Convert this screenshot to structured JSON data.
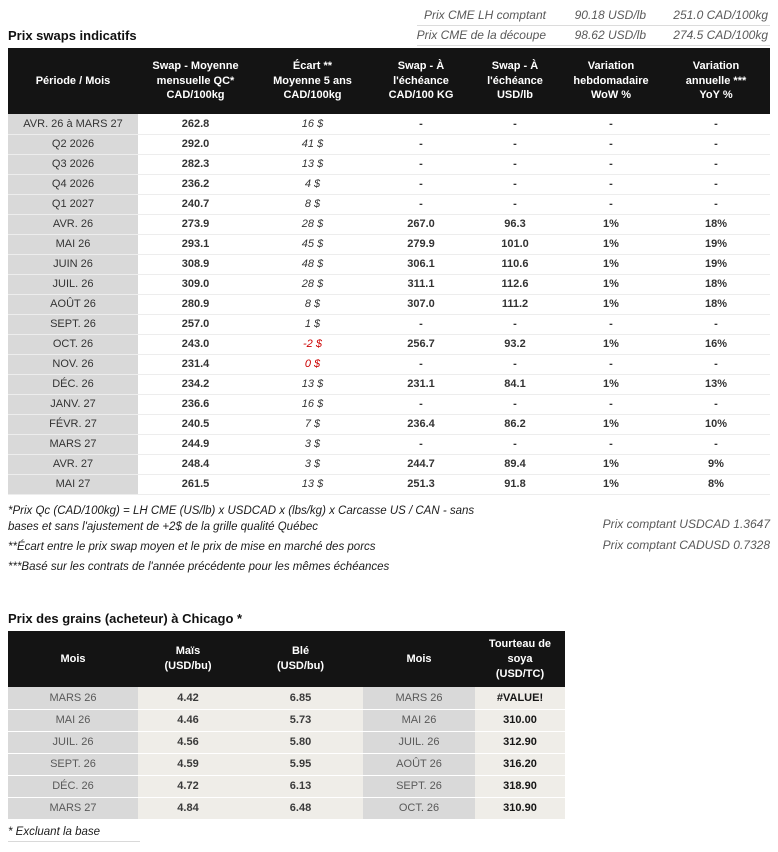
{
  "colors": {
    "positive_green": "#0b860b",
    "spread_green": "#2a9a2a",
    "negative_red": "#cc0000",
    "header_bg": "#141414",
    "period_label_bg": "#d9d9d9"
  },
  "top_quotes": [
    {
      "label": "Prix CME LH comptant",
      "usd": "90.18 USD/lb",
      "cad": "251.0 CAD/100kg"
    },
    {
      "label": "Prix CME de la découpe",
      "usd": "98.62 USD/lb",
      "cad": "274.5 CAD/100kg"
    }
  ],
  "swaps_table": {
    "title": "Prix swaps indicatifs",
    "headers": [
      "Période / Mois",
      "Swap - Moyenne\nmensuelle QC*\nCAD/100kg",
      "Écart **\nMoyenne 5 ans\nCAD/100kg",
      "Swap - À\nl'échéance\nCAD/100 KG",
      "Swap - À\nl'échéance\nUSD/lb",
      "Variation\nhebdomadaire\nWoW %",
      "Variation\nannuelle ***\nYoY %"
    ],
    "rows": [
      {
        "period": "AVR. 26 à MARS 27",
        "avg": "262.8",
        "ecart": "16 $",
        "ecart_negative": false,
        "maturity_cad": "-",
        "maturity_usd": "-",
        "wow": "-",
        "yoy": "-"
      },
      {
        "period": "Q2 2026",
        "avg": "292.0",
        "ecart": "41 $",
        "ecart_negative": false,
        "maturity_cad": "-",
        "maturity_usd": "-",
        "wow": "-",
        "yoy": "-"
      },
      {
        "period": "Q3 2026",
        "avg": "282.3",
        "ecart": "13 $",
        "ecart_negative": false,
        "maturity_cad": "-",
        "maturity_usd": "-",
        "wow": "-",
        "yoy": "-"
      },
      {
        "period": "Q4 2026",
        "avg": "236.2",
        "ecart": "4 $",
        "ecart_negative": false,
        "maturity_cad": "-",
        "maturity_usd": "-",
        "wow": "-",
        "yoy": "-"
      },
      {
        "period": "Q1 2027",
        "avg": "240.7",
        "ecart": "8 $",
        "ecart_negative": false,
        "maturity_cad": "-",
        "maturity_usd": "-",
        "wow": "-",
        "yoy": "-"
      },
      {
        "period": "AVR. 26",
        "avg": "273.9",
        "ecart": "28 $",
        "ecart_negative": false,
        "maturity_cad": "267.0",
        "maturity_usd": "96.3",
        "wow": "1%",
        "yoy": "18%"
      },
      {
        "period": "MAI 26",
        "avg": "293.1",
        "ecart": "45 $",
        "ecart_negative": false,
        "maturity_cad": "279.9",
        "maturity_usd": "101.0",
        "wow": "1%",
        "yoy": "19%"
      },
      {
        "period": "JUIN 26",
        "avg": "308.9",
        "ecart": "48 $",
        "ecart_negative": false,
        "maturity_cad": "306.1",
        "maturity_usd": "110.6",
        "wow": "1%",
        "yoy": "19%"
      },
      {
        "period": "JUIL. 26",
        "avg": "309.0",
        "ecart": "28 $",
        "ecart_negative": false,
        "maturity_cad": "311.1",
        "maturity_usd": "112.6",
        "wow": "1%",
        "yoy": "18%"
      },
      {
        "period": "AOÛT 26",
        "avg": "280.9",
        "ecart": "8 $",
        "ecart_negative": false,
        "maturity_cad": "307.0",
        "maturity_usd": "111.2",
        "wow": "1%",
        "yoy": "18%"
      },
      {
        "period": "SEPT. 26",
        "avg": "257.0",
        "ecart": "1 $",
        "ecart_negative": false,
        "maturity_cad": "-",
        "maturity_usd": "-",
        "wow": "-",
        "yoy": "-"
      },
      {
        "period": "OCT. 26",
        "avg": "243.0",
        "ecart": "-2 $",
        "ecart_negative": true,
        "maturity_cad": "256.7",
        "maturity_usd": "93.2",
        "wow": "1%",
        "yoy": "16%"
      },
      {
        "period": "NOV. 26",
        "avg": "231.4",
        "ecart": "0 $",
        "ecart_negative": true,
        "maturity_cad": "-",
        "maturity_usd": "-",
        "wow": "-",
        "yoy": "-"
      },
      {
        "period": "DÉC. 26",
        "avg": "234.2",
        "ecart": "13 $",
        "ecart_negative": false,
        "maturity_cad": "231.1",
        "maturity_usd": "84.1",
        "wow": "1%",
        "yoy": "13%"
      },
      {
        "period": "JANV. 27",
        "avg": "236.6",
        "ecart": "16 $",
        "ecart_negative": false,
        "maturity_cad": "-",
        "maturity_usd": "-",
        "wow": "-",
        "yoy": "-"
      },
      {
        "period": "FÉVR. 27",
        "avg": "240.5",
        "ecart": "7 $",
        "ecart_negative": false,
        "maturity_cad": "236.4",
        "maturity_usd": "86.2",
        "wow": "1%",
        "yoy": "10%"
      },
      {
        "period": "MARS 27",
        "avg": "244.9",
        "ecart": "3 $",
        "ecart_negative": false,
        "maturity_cad": "-",
        "maturity_usd": "-",
        "wow": "-",
        "yoy": "-"
      },
      {
        "period": "AVR. 27",
        "avg": "248.4",
        "ecart": "3 $",
        "ecart_negative": false,
        "maturity_cad": "244.7",
        "maturity_usd": "89.4",
        "wow": "1%",
        "yoy": "9%"
      },
      {
        "period": "MAI 27",
        "avg": "261.5",
        "ecart": "13 $",
        "ecart_negative": false,
        "maturity_cad": "251.3",
        "maturity_usd": "91.8",
        "wow": "1%",
        "yoy": "8%"
      }
    ]
  },
  "footnotes": [
    "*Prix Qc (CAD/100kg) = LH CME (US/lb) x USDCAD x (lbs/kg) x Carcasse US / CAN - sans bases et sans l'ajustement de +2$ de la grille qualité Québec",
    "**Écart entre le prix swap moyen et le prix de mise en marché des porcs",
    "***Basé sur les contrats de l'année précédente pour les mêmes échéances"
  ],
  "fx_notes": [
    "Prix comptant USDCAD 1.3647",
    "Prix comptant CADUSD 0.7328"
  ],
  "grains_table": {
    "title": "Prix des grains (acheteur) à Chicago *",
    "headers": [
      "Mois",
      "Maïs\n(USD/bu)",
      "Blé\n(USD/bu)",
      "Mois",
      "Tourteau de\nsoya\n(USD/TC)"
    ],
    "rows": [
      {
        "month1": "MARS 26",
        "corn": "4.42",
        "wheat": "6.85",
        "month2": "MARS 26",
        "soymeal": "#VALUE!"
      },
      {
        "month1": "MAI 26",
        "corn": "4.46",
        "wheat": "5.73",
        "month2": "MAI 26",
        "soymeal": "310.00"
      },
      {
        "month1": "JUIL. 26",
        "corn": "4.56",
        "wheat": "5.80",
        "month2": "JUIL. 26",
        "soymeal": "312.90"
      },
      {
        "month1": "SEPT. 26",
        "corn": "4.59",
        "wheat": "5.95",
        "month2": "AOÛT 26",
        "soymeal": "316.20"
      },
      {
        "month1": "DÉC. 26",
        "corn": "4.72",
        "wheat": "6.13",
        "month2": "SEPT. 26",
        "soymeal": "318.90"
      },
      {
        "month1": "MARS 27",
        "corn": "4.84",
        "wheat": "6.48",
        "month2": "OCT. 26",
        "soymeal": "310.90"
      }
    ],
    "footnote": "* Excluant la base"
  }
}
